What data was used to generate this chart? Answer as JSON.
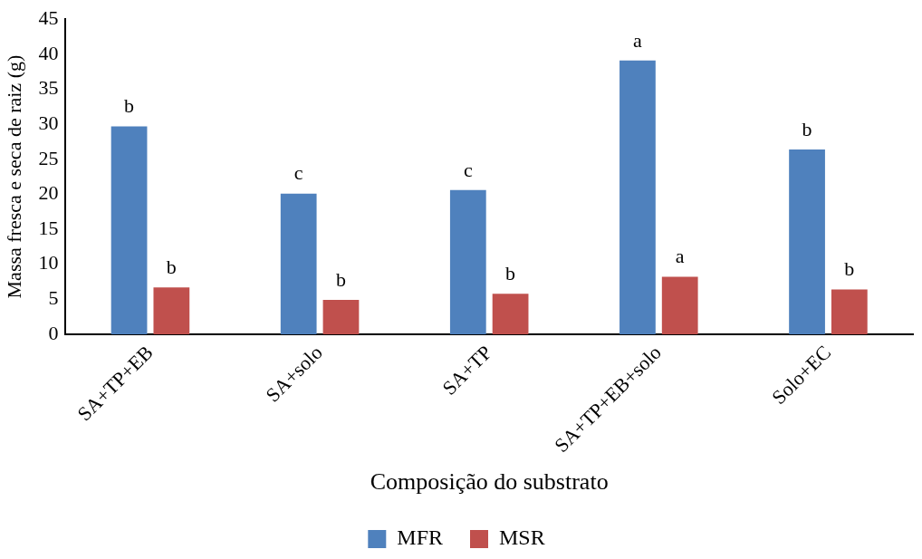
{
  "chart_data": {
    "type": "bar",
    "xlabel": "Composição do substrato",
    "ylabel": "Massa fresca e seca de raiz (g)",
    "categories": [
      "SA+TP+EB",
      "SA+solo",
      "SA+TP",
      "SA+TP+EB+solo",
      "Solo+EC"
    ],
    "series": [
      {
        "name": "MFR",
        "color": "#4f81bd",
        "values": [
          29.7,
          20.1,
          20.6,
          39.1,
          26.4
        ]
      },
      {
        "name": "MSR",
        "color": "#c0504d",
        "values": [
          6.7,
          4.9,
          5.8,
          8.2,
          6.4
        ]
      }
    ],
    "ylim": [
      0,
      45
    ],
    "yticks": [
      0,
      5,
      10,
      15,
      20,
      25,
      30,
      35,
      40,
      45
    ],
    "grid": false,
    "legend": "bottom",
    "annotations": [
      {
        "text": "b",
        "x": "SA+TP+EB",
        "y": 29.7
      },
      {
        "text": "b",
        "x": "SA+TP+EB",
        "y": 6.7
      },
      {
        "text": "c",
        "x": "SA+solo",
        "y": 20.1
      },
      {
        "text": "b",
        "x": "SA+solo",
        "y": 4.9
      },
      {
        "text": "c",
        "x": "SA+TP",
        "y": 20.6
      },
      {
        "text": "b",
        "x": "SA+TP",
        "y": 5.8
      },
      {
        "text": "a",
        "x": "SA+TP+EB+solo",
        "y": 39.1
      },
      {
        "text": "a",
        "x": "SA+TP+EB+solo",
        "y": 8.2
      },
      {
        "text": "b",
        "x": "Solo+EC",
        "y": 26.4
      },
      {
        "text": "b",
        "x": "Solo+EC",
        "y": 6.4
      }
    ]
  }
}
